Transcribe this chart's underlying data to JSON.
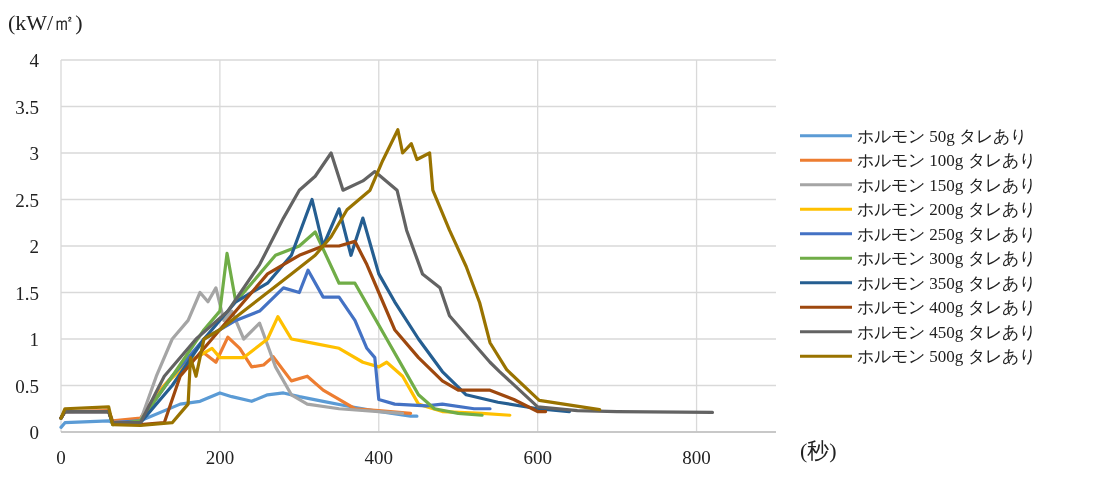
{
  "chart_data": {
    "type": "line",
    "ylabel": "(kW/㎡)",
    "xlabel": "(秒)",
    "xlim": [
      0,
      900
    ],
    "xticks": [
      0,
      200,
      400,
      600,
      800
    ],
    "ylim": [
      0,
      4
    ],
    "yticks": [
      0,
      0.5,
      1,
      1.5,
      2,
      2.5,
      3,
      3.5,
      4
    ],
    "grid": true,
    "legend": "right",
    "marker": "none",
    "line_style": "solid",
    "series": [
      {
        "name": "ホルモン 50g タレあり",
        "color": "#5b9bd5",
        "x": [
          0,
          5,
          60,
          65,
          100,
          150,
          175,
          200,
          215,
          240,
          260,
          280,
          300,
          330,
          360,
          400,
          440,
          448
        ],
        "values": [
          0.05,
          0.1,
          0.12,
          0.1,
          0.12,
          0.3,
          0.33,
          0.42,
          0.38,
          0.33,
          0.4,
          0.42,
          0.38,
          0.33,
          0.28,
          0.22,
          0.17,
          0.17
        ]
      },
      {
        "name": "ホルモン 100g タレあり",
        "color": "#ed7d31",
        "x": [
          0,
          5,
          60,
          65,
          100,
          120,
          140,
          160,
          180,
          195,
          210,
          225,
          240,
          255,
          267,
          290,
          310,
          330,
          350,
          370,
          400,
          440
        ],
        "values": [
          0.15,
          0.22,
          0.23,
          0.12,
          0.15,
          0.4,
          0.6,
          0.75,
          0.85,
          0.75,
          1.02,
          0.9,
          0.7,
          0.72,
          0.81,
          0.55,
          0.6,
          0.45,
          0.35,
          0.25,
          0.23,
          0.2
        ]
      },
      {
        "name": "ホルモン 150g タレあり",
        "color": "#a5a5a5",
        "x": [
          0,
          5,
          60,
          65,
          100,
          120,
          140,
          160,
          175,
          185,
          195,
          205,
          215,
          230,
          250,
          270,
          290,
          310,
          350,
          400,
          430
        ],
        "values": [
          0.15,
          0.22,
          0.22,
          0.1,
          0.12,
          0.6,
          1.0,
          1.2,
          1.5,
          1.4,
          1.55,
          1.2,
          1.3,
          1.0,
          1.17,
          0.7,
          0.4,
          0.3,
          0.25,
          0.22,
          0.2
        ]
      },
      {
        "name": "ホルモン 200g タレあり",
        "color": "#ffc000",
        "x": [
          100,
          130,
          160,
          190,
          200,
          230,
          260,
          273,
          290,
          320,
          350,
          380,
          400,
          410,
          430,
          450,
          480,
          530,
          565
        ],
        "values": [
          0.12,
          0.5,
          0.75,
          0.9,
          0.8,
          0.8,
          1.0,
          1.24,
          1.0,
          0.95,
          0.9,
          0.75,
          0.7,
          0.75,
          0.6,
          0.3,
          0.22,
          0.2,
          0.18
        ]
      },
      {
        "name": "ホルモン 250g タレあり",
        "color": "#4472c4",
        "x": [
          0,
          5,
          60,
          65,
          100,
          140,
          180,
          220,
          250,
          280,
          300,
          311,
          330,
          350,
          370,
          385,
          395,
          400,
          420,
          460,
          480,
          520,
          540
        ],
        "values": [
          0.15,
          0.22,
          0.22,
          0.1,
          0.12,
          0.6,
          1.0,
          1.2,
          1.3,
          1.55,
          1.5,
          1.74,
          1.45,
          1.45,
          1.2,
          0.9,
          0.8,
          0.35,
          0.3,
          0.28,
          0.3,
          0.25,
          0.25
        ]
      },
      {
        "name": "ホルモン 300g タレあり",
        "color": "#70ad47",
        "x": [
          60,
          65,
          100,
          140,
          180,
          200,
          209,
          220,
          240,
          270,
          300,
          320,
          350,
          370,
          390,
          410,
          430,
          450,
          470,
          500,
          530
        ],
        "values": [
          0.22,
          0.08,
          0.12,
          0.6,
          1.1,
          1.3,
          1.92,
          1.4,
          1.6,
          1.9,
          2.0,
          2.15,
          1.6,
          1.6,
          1.3,
          1.0,
          0.7,
          0.4,
          0.25,
          0.2,
          0.18
        ]
      },
      {
        "name": "ホルモン 350g タレあり",
        "color": "#255e91",
        "x": [
          0,
          5,
          60,
          65,
          100,
          140,
          180,
          220,
          260,
          290,
          316,
          330,
          350,
          365,
          380,
          400,
          420,
          450,
          480,
          510,
          550,
          600,
          640
        ],
        "values": [
          0.15,
          0.22,
          0.22,
          0.1,
          0.1,
          0.5,
          1.0,
          1.4,
          1.6,
          1.9,
          2.5,
          2.0,
          2.4,
          1.9,
          2.3,
          1.7,
          1.4,
          1.0,
          0.65,
          0.4,
          0.32,
          0.25,
          0.22
        ]
      },
      {
        "name": "ホルモン 400g タレあり",
        "color": "#9e480e",
        "x": [
          0,
          5,
          60,
          65,
          100,
          130,
          150,
          190,
          230,
          260,
          300,
          330,
          350,
          370,
          385,
          400,
          420,
          450,
          480,
          500,
          540,
          570,
          600,
          610
        ],
        "values": [
          0.15,
          0.22,
          0.22,
          0.1,
          0.08,
          0.1,
          0.6,
          1.0,
          1.4,
          1.7,
          1.9,
          2.0,
          2.0,
          2.05,
          1.8,
          1.5,
          1.1,
          0.8,
          0.55,
          0.45,
          0.45,
          0.35,
          0.22,
          0.22
        ]
      },
      {
        "name": "ホルモン 450g タレあり",
        "color": "#636363",
        "x": [
          0,
          5,
          60,
          65,
          100,
          130,
          170,
          210,
          250,
          280,
          300,
          320,
          340,
          355,
          380,
          395,
          423,
          435,
          455,
          477,
          489,
          540,
          552,
          600,
          650,
          700,
          820
        ],
        "values": [
          0.15,
          0.22,
          0.22,
          0.1,
          0.1,
          0.6,
          1.0,
          1.3,
          1.8,
          2.3,
          2.6,
          2.75,
          3.0,
          2.6,
          2.7,
          2.8,
          2.6,
          2.17,
          1.7,
          1.55,
          1.25,
          0.75,
          0.65,
          0.27,
          0.23,
          0.22,
          0.21
        ]
      },
      {
        "name": "ホルモン 500g タレあり",
        "color": "#997300",
        "x": [
          0,
          5,
          60,
          65,
          100,
          140,
          150,
          160,
          163,
          170,
          180,
          200,
          230,
          260,
          290,
          320,
          340,
          360,
          389,
          405,
          424,
          430,
          441,
          448,
          464,
          468,
          489,
          510,
          527,
          540,
          561,
          602,
          678
        ],
        "values": [
          0.15,
          0.25,
          0.27,
          0.08,
          0.07,
          0.1,
          0.2,
          0.3,
          0.8,
          0.6,
          1.0,
          1.1,
          1.3,
          1.5,
          1.7,
          1.9,
          2.1,
          2.39,
          2.6,
          2.92,
          3.25,
          3.0,
          3.1,
          2.93,
          3.0,
          2.6,
          2.17,
          1.78,
          1.39,
          0.96,
          0.67,
          0.34,
          0.24
        ]
      }
    ]
  }
}
